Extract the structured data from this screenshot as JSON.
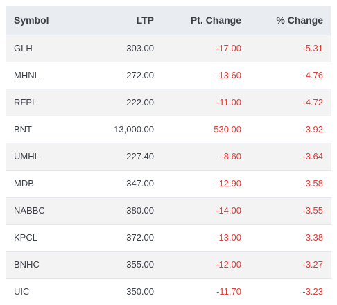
{
  "table": {
    "headers": {
      "symbol": "Symbol",
      "ltp": "LTP",
      "pt_change": "Pt. Change",
      "pct_change": "% Change"
    },
    "rows": [
      {
        "symbol": "GLH",
        "ltp": "303.00",
        "pt_change": "-17.00",
        "pct_change": "-5.31"
      },
      {
        "symbol": "MHNL",
        "ltp": "272.00",
        "pt_change": "-13.60",
        "pct_change": "-4.76"
      },
      {
        "symbol": "RFPL",
        "ltp": "222.00",
        "pt_change": "-11.00",
        "pct_change": "-4.72"
      },
      {
        "symbol": "BNT",
        "ltp": "13,000.00",
        "pt_change": "-530.00",
        "pct_change": "-3.92"
      },
      {
        "symbol": "UMHL",
        "ltp": "227.40",
        "pt_change": "-8.60",
        "pct_change": "-3.64"
      },
      {
        "symbol": "MDB",
        "ltp": "347.00",
        "pt_change": "-12.90",
        "pct_change": "-3.58"
      },
      {
        "symbol": "NABBC",
        "ltp": "380.00",
        "pt_change": "-14.00",
        "pct_change": "-3.55"
      },
      {
        "symbol": "KPCL",
        "ltp": "372.00",
        "pt_change": "-13.00",
        "pct_change": "-3.38"
      },
      {
        "symbol": "BNHC",
        "ltp": "355.00",
        "pt_change": "-12.00",
        "pct_change": "-3.27"
      },
      {
        "symbol": "UIC",
        "ltp": "350.00",
        "pt_change": "-11.70",
        "pct_change": "-3.23"
      }
    ]
  },
  "colors": {
    "negative": "#e53935",
    "header_bg": "#e9ecf1",
    "row_alt_bg": "#f3f3f4"
  }
}
